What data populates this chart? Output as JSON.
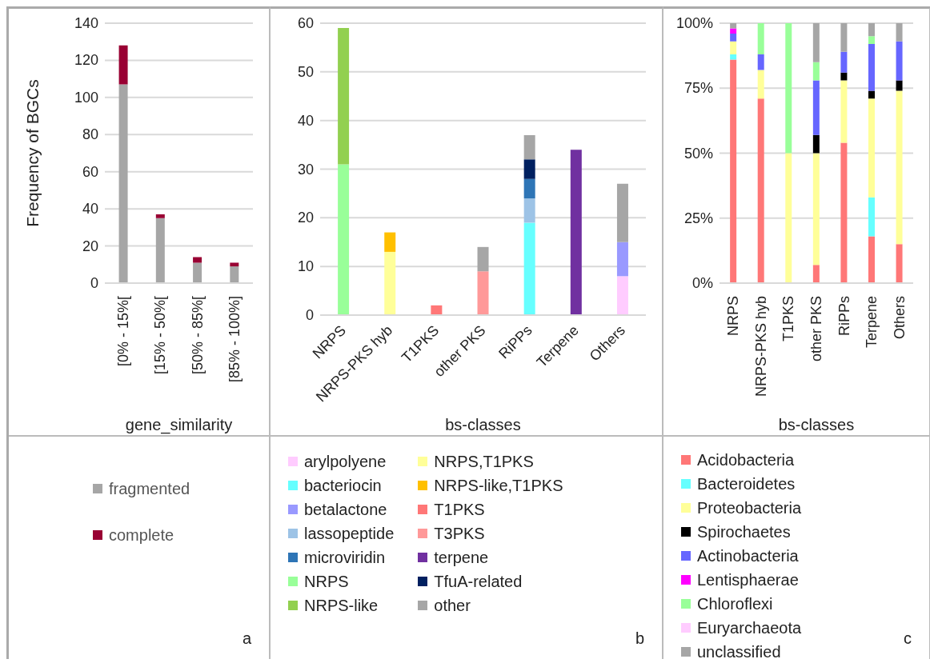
{
  "chart_data": [
    {
      "type": "bar",
      "stacked": true,
      "xlabel": "gene_similarity",
      "ylabel": "Frequency of BGCs",
      "categories": [
        "[0% - 15%[",
        "[15% - 50%[",
        "[50% - 85%[",
        "[85% - 100%]"
      ],
      "ylim": [
        0,
        140
      ],
      "yticks": [
        0,
        20,
        40,
        60,
        80,
        100,
        120,
        140
      ],
      "grid": "y",
      "legend": "bottom",
      "annotations": [
        "a"
      ],
      "series": [
        {
          "name": "fragmented",
          "color": "#a6a6a6",
          "values": [
            107,
            35,
            11,
            9
          ]
        },
        {
          "name": "complete",
          "color": "#990033",
          "values": [
            21,
            2,
            3,
            2
          ]
        }
      ]
    },
    {
      "type": "bar",
      "stacked": true,
      "xlabel": "bs-classes",
      "categories": [
        "NRPS",
        "NRPS-PKS hyb",
        "T1PKS",
        "other PKS",
        "RiPPs",
        "Terpene",
        "Others"
      ],
      "ylim": [
        0,
        60
      ],
      "yticks": [
        0,
        10,
        20,
        30,
        40,
        50,
        60
      ],
      "grid": "y",
      "legend": "bottom",
      "annotations": [
        "b"
      ],
      "series": [
        {
          "name": "arylpolyene",
          "color": "#ffccff",
          "values": [
            null,
            null,
            null,
            null,
            null,
            null,
            8
          ]
        },
        {
          "name": "bacteriocin",
          "color": "#66ffff",
          "values": [
            null,
            null,
            null,
            null,
            19,
            null,
            null
          ]
        },
        {
          "name": "betalactone",
          "color": "#9999ff",
          "values": [
            null,
            null,
            null,
            null,
            null,
            null,
            7
          ]
        },
        {
          "name": "lassopeptide",
          "color": "#9dc3e6",
          "values": [
            null,
            null,
            null,
            null,
            5,
            null,
            null
          ]
        },
        {
          "name": "microviridin",
          "color": "#2e75b6",
          "values": [
            null,
            null,
            null,
            null,
            4,
            null,
            null
          ]
        },
        {
          "name": "NRPS",
          "color": "#99ff99",
          "values": [
            31,
            null,
            null,
            null,
            null,
            null,
            null
          ]
        },
        {
          "name": "NRPS-like",
          "color": "#92d050",
          "values": [
            28,
            null,
            null,
            null,
            null,
            null,
            null
          ]
        },
        {
          "name": "NRPS,T1PKS",
          "color": "#ffff99",
          "values": [
            null,
            13,
            null,
            null,
            null,
            null,
            null
          ]
        },
        {
          "name": "NRPS-like,T1PKS",
          "color": "#ffc000",
          "values": [
            null,
            4,
            null,
            null,
            null,
            null,
            null
          ]
        },
        {
          "name": "T1PKS",
          "color": "#ff7777",
          "values": [
            null,
            null,
            2,
            null,
            null,
            null,
            null
          ]
        },
        {
          "name": "T3PKS",
          "color": "#ff9999",
          "values": [
            null,
            null,
            null,
            9,
            null,
            null,
            null
          ]
        },
        {
          "name": "terpene",
          "color": "#7030a0",
          "values": [
            null,
            null,
            null,
            null,
            null,
            34,
            null
          ]
        },
        {
          "name": "TfuA-related",
          "color": "#002060",
          "values": [
            null,
            null,
            null,
            null,
            4,
            null,
            null
          ]
        },
        {
          "name": "other",
          "color": "#a6a6a6",
          "values": [
            null,
            null,
            null,
            5,
            5,
            null,
            12
          ]
        }
      ]
    },
    {
      "type": "bar",
      "stacked": true,
      "xlabel": "bs-classes",
      "categories": [
        "NRPS",
        "NRPS-PKS hyb",
        "T1PKS",
        "other PKS",
        "RiPPs",
        "Terpene",
        "Others"
      ],
      "ylim": [
        0,
        100
      ],
      "yticks": [
        {
          "value": 0,
          "label": "0%"
        },
        {
          "value": 25,
          "label": "25%"
        },
        {
          "value": 50,
          "label": "50%"
        },
        {
          "value": 75,
          "label": "75%"
        },
        {
          "value": 100,
          "label": "100%"
        }
      ],
      "grid": "y",
      "legend": "bottom",
      "annotations": [
        "c"
      ],
      "series": [
        {
          "name": "Acidobacteria",
          "color": "#ff7777",
          "values": [
            86,
            71,
            null,
            7,
            54,
            18,
            15
          ]
        },
        {
          "name": "Bacteroidetes",
          "color": "#66ffff",
          "values": [
            2,
            null,
            null,
            null,
            null,
            15,
            null
          ]
        },
        {
          "name": "Proteobacteria",
          "color": "#ffff99",
          "values": [
            5,
            11,
            50,
            43,
            24,
            38,
            59
          ]
        },
        {
          "name": "Spirochaetes",
          "color": "#000000",
          "values": [
            null,
            null,
            null,
            7,
            3,
            3,
            4
          ]
        },
        {
          "name": "Actinobacteria",
          "color": "#6666ff",
          "values": [
            3,
            6,
            null,
            21,
            8,
            18,
            15
          ]
        },
        {
          "name": "Lentisphaerae",
          "color": "#ff00ff",
          "values": [
            2,
            null,
            null,
            null,
            null,
            null,
            null
          ]
        },
        {
          "name": "Chloroflexi",
          "color": "#99ff99",
          "values": [
            null,
            12,
            50,
            7,
            null,
            3,
            null
          ]
        },
        {
          "name": "Euryarchaeota",
          "color": "#ffccff",
          "values": [
            null,
            null,
            null,
            null,
            null,
            null,
            null
          ]
        },
        {
          "name": "unclassified",
          "color": "#a6a6a6",
          "values": [
            2,
            null,
            null,
            15,
            11,
            5,
            7
          ]
        }
      ]
    }
  ]
}
